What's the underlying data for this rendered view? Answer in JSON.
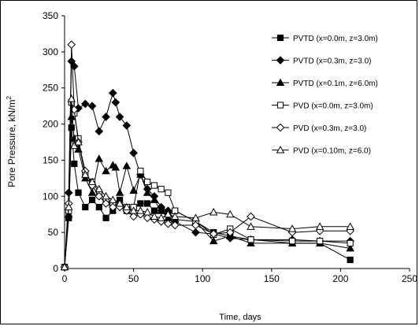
{
  "chart_data": {
    "type": "line",
    "xlabel": "Time, days",
    "ylabel": "Pore Pressure, kN/m",
    "ylabel_superscript": "2",
    "xlim": [
      0,
      250
    ],
    "ylim": [
      0,
      350
    ],
    "xticks": [
      0,
      50,
      100,
      150,
      200,
      250
    ],
    "yticks": [
      0,
      50,
      100,
      150,
      200,
      250,
      300,
      350
    ],
    "grid": false,
    "legend_position": "top-right",
    "series": [
      {
        "name": "PVTD (x=0.0m, z=3.0m)",
        "marker": "square-filled",
        "x": [
          0,
          3,
          5,
          7,
          10,
          15,
          20,
          25,
          30,
          35,
          40,
          45,
          50,
          55,
          60,
          65,
          70,
          75,
          80,
          95,
          108,
          120,
          135,
          165,
          185,
          207
        ],
        "y": [
          2,
          70,
          195,
          145,
          105,
          85,
          95,
          85,
          70,
          80,
          95,
          80,
          85,
          90,
          90,
          80,
          80,
          75,
          80,
          65,
          50,
          45,
          40,
          35,
          35,
          12
        ]
      },
      {
        "name": "PVTD (x=0.3m, z=3.0)",
        "marker": "diamond-filled",
        "x": [
          0,
          3,
          5,
          7,
          10,
          15,
          20,
          25,
          30,
          35,
          37,
          40,
          45,
          50,
          55,
          60,
          65,
          70,
          75,
          80,
          95,
          108,
          120,
          135,
          165,
          185,
          207
        ],
        "y": [
          2,
          105,
          287,
          280,
          222,
          228,
          225,
          190,
          210,
          243,
          230,
          210,
          198,
          160,
          130,
          110,
          100,
          85,
          80,
          65,
          50,
          48,
          42,
          40,
          40,
          38,
          38
        ]
      },
      {
        "name": "PVTD (x=0.1m, z=6.0m)",
        "marker": "triangle-filled",
        "x": [
          0,
          3,
          5,
          7,
          10,
          15,
          20,
          25,
          30,
          35,
          37,
          40,
          45,
          50,
          55,
          60,
          65,
          70,
          75,
          80,
          95,
          108,
          120,
          135,
          165,
          185,
          207
        ],
        "y": [
          2,
          75,
          210,
          180,
          165,
          125,
          105,
          152,
          135,
          143,
          140,
          105,
          142,
          108,
          130,
          105,
          95,
          80,
          70,
          68,
          65,
          38,
          45,
          35,
          35,
          35,
          28
        ]
      },
      {
        "name": "PVD (x=0.0m, z=3.0m)",
        "marker": "square-open",
        "x": [
          0,
          3,
          5,
          7,
          10,
          15,
          20,
          25,
          30,
          35,
          40,
          45,
          50,
          55,
          60,
          65,
          70,
          75,
          80,
          95,
          108,
          120,
          135,
          165,
          185,
          207
        ],
        "y": [
          2,
          80,
          230,
          215,
          180,
          130,
          120,
          105,
          95,
          90,
          88,
          85,
          85,
          135,
          120,
          115,
          110,
          105,
          80,
          65,
          47,
          55,
          40,
          38,
          38,
          35
        ]
      },
      {
        "name": "PVD (x=0.3m, z=3.0)",
        "marker": "diamond-open",
        "x": [
          0,
          3,
          5,
          7,
          10,
          15,
          20,
          25,
          30,
          35,
          40,
          45,
          50,
          55,
          60,
          65,
          70,
          75,
          80,
          95,
          108,
          120,
          135,
          165,
          185,
          207
        ],
        "y": [
          2,
          90,
          310,
          220,
          175,
          135,
          115,
          100,
          90,
          85,
          85,
          80,
          72,
          75,
          70,
          68,
          65,
          62,
          60,
          60,
          48,
          50,
          72,
          50,
          52,
          52
        ]
      },
      {
        "name": "PVD (x=0.10m, z=6.0)",
        "marker": "triangle-open",
        "x": [
          0,
          3,
          5,
          7,
          10,
          15,
          20,
          25,
          30,
          35,
          40,
          45,
          50,
          55,
          60,
          65,
          70,
          75,
          80,
          95,
          108,
          120,
          135,
          165,
          185,
          207
        ],
        "y": [
          2,
          85,
          235,
          170,
          175,
          130,
          120,
          110,
          100,
          95,
          90,
          85,
          80,
          80,
          78,
          72,
          70,
          75,
          72,
          70,
          78,
          75,
          58,
          55,
          58,
          58
        ]
      }
    ]
  }
}
